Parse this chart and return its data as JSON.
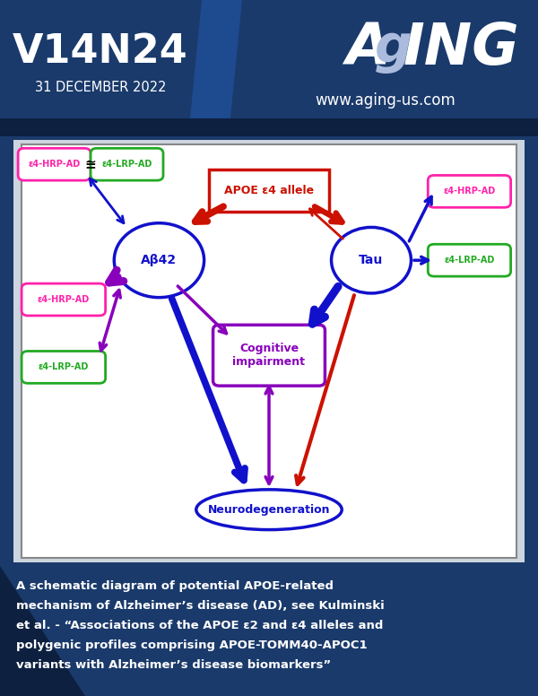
{
  "volume": "V14N24",
  "date": "31 DECEMBER 2022",
  "website": "www.aging-us.com",
  "caption_lines": [
    "A schematic diagram of potential APOE-related",
    "mechanism of Alzheimer’s disease (AD), see Kulminski",
    "et al. - “Associations of the APOE ε2 and ε4 alleles and",
    "polygenic profiles comprising APOE-TOMM40-APOC1",
    "variants with Alzheimer’s disease biomarkers”"
  ],
  "bg_header_left": "#1a3a6b",
  "bg_header_right": "#1e4a8a",
  "bg_header_bar": "#0d2040",
  "bg_footer": "#1a4080",
  "bg_footer_tri": "#0d2040",
  "bg_diagram_outer": "#cdd5df",
  "bg_diagram_inner": "#ffffff",
  "col_blue": "#1111cc",
  "col_red": "#cc1100",
  "col_purple": "#8800bb",
  "col_magenta": "#ff22aa",
  "col_green": "#22aa22",
  "col_white": "#ffffff",
  "col_border": "#888888"
}
